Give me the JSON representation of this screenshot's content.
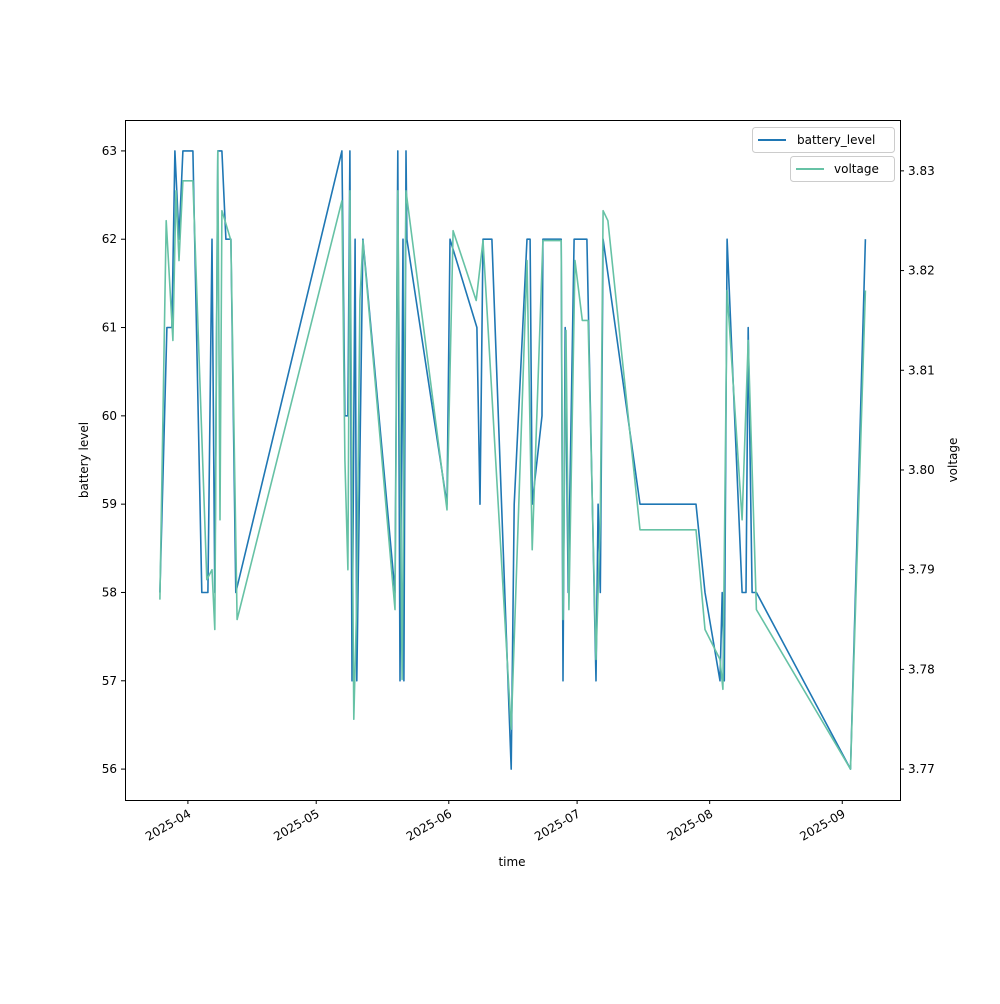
{
  "chart_data": {
    "type": "line",
    "xlabel": "time",
    "ylabel_left": "battery level",
    "ylabel_right": "voltage",
    "xlim": [
      "2025-03-17T07:00",
      "2025-09-14T12:00"
    ],
    "ylim_left": [
      55.65,
      63.35
    ],
    "ylim_right": [
      3.7669,
      3.8351
    ],
    "x_ticks": [
      "2025-04",
      "2025-05",
      "2025-06",
      "2025-07",
      "2025-08",
      "2025-09"
    ],
    "y_ticks_left": [
      56,
      57,
      58,
      59,
      60,
      61,
      62,
      63
    ],
    "y_ticks_right": [
      "3.77",
      "3.78",
      "3.79",
      "3.80",
      "3.81",
      "3.82",
      "3.83"
    ],
    "legend": [
      {
        "label": "battery_level",
        "color": "#1f77b4",
        "placement": "top-right"
      },
      {
        "label": "voltage",
        "color": "#66c2a5",
        "placement": "top-right"
      }
    ],
    "series": [
      {
        "name": "battery_level",
        "axis": "left",
        "color": "#1f77b4",
        "points": [
          [
            "2025-03-25T11:00",
            58
          ],
          [
            "2025-03-27T02:00",
            61
          ],
          [
            "2025-03-28T06:00",
            61
          ],
          [
            "2025-03-28T23:00",
            63
          ],
          [
            "2025-03-29T22:00",
            62
          ],
          [
            "2025-03-30T20:00",
            63
          ],
          [
            "2025-04-02T04:00",
            63
          ],
          [
            "2025-04-04T06:00",
            58
          ],
          [
            "2025-04-05T16:00",
            58
          ],
          [
            "2025-04-06T15:00",
            62
          ],
          [
            "2025-04-07T07:00",
            58
          ],
          [
            "2025-04-08T00:00",
            63
          ],
          [
            "2025-04-08T23:00",
            63
          ],
          [
            "2025-04-09T21:00",
            62
          ],
          [
            "2025-04-11T01:00",
            62
          ],
          [
            "2025-04-12T05:00",
            58
          ],
          [
            "2025-05-07T00:00",
            63
          ],
          [
            "2025-05-07T17:00",
            60
          ],
          [
            "2025-05-08T10:00",
            60
          ],
          [
            "2025-05-08T21:00",
            63
          ],
          [
            "2025-05-09T09:00",
            57
          ],
          [
            "2025-05-10T02:00",
            62
          ],
          [
            "2025-05-10T12:00",
            57
          ],
          [
            "2025-05-11T22:00",
            62
          ],
          [
            "2025-05-19T10:00",
            58
          ],
          [
            "2025-05-20T02:00",
            63
          ],
          [
            "2025-05-20T14:00",
            57
          ],
          [
            "2025-05-21T07:00",
            62
          ],
          [
            "2025-05-21T12:00",
            57
          ],
          [
            "2025-05-22T00:00",
            63
          ],
          [
            "2025-05-22T05:00",
            62
          ],
          [
            "2025-05-31T14:00",
            59
          ],
          [
            "2025-06-01T07:00",
            62
          ],
          [
            "2025-06-07T14:00",
            61
          ],
          [
            "2025-06-08T07:00",
            59
          ],
          [
            "2025-06-09T00:00",
            62
          ],
          [
            "2025-06-11T02:00",
            62
          ],
          [
            "2025-06-15T14:00",
            56
          ],
          [
            "2025-06-16T07:00",
            59
          ],
          [
            "2025-06-19T07:00",
            62
          ],
          [
            "2025-06-20T00:00",
            62
          ],
          [
            "2025-06-20T12:00",
            59
          ],
          [
            "2025-06-22T19:00",
            60
          ],
          [
            "2025-06-23T00:00",
            62
          ],
          [
            "2025-06-27T07:00",
            62
          ],
          [
            "2025-06-27T17:00",
            57
          ],
          [
            "2025-06-28T05:00",
            61
          ],
          [
            "2025-06-28T22:00",
            58
          ],
          [
            "2025-06-30T07:00",
            62
          ],
          [
            "2025-07-02T05:00",
            62
          ],
          [
            "2025-07-03T07:00",
            62
          ],
          [
            "2025-07-05T10:00",
            57
          ],
          [
            "2025-07-05T22:00",
            59
          ],
          [
            "2025-07-06T10:00",
            58
          ],
          [
            "2025-07-07T02:00",
            62
          ],
          [
            "2025-07-15T17:00",
            59
          ],
          [
            "2025-07-28T19:00",
            59
          ],
          [
            "2025-07-30T22:00",
            58
          ],
          [
            "2025-08-03T10:00",
            57
          ],
          [
            "2025-08-03T22:00",
            58
          ],
          [
            "2025-08-04T10:00",
            57
          ],
          [
            "2025-08-05T02:00",
            62
          ],
          [
            "2025-08-08T14:00",
            58
          ],
          [
            "2025-08-09T12:00",
            58
          ],
          [
            "2025-08-10T00:00",
            61
          ],
          [
            "2025-08-10T22:00",
            58
          ],
          [
            "2025-08-11T22:00",
            58
          ],
          [
            "2025-09-02T22:00",
            56
          ],
          [
            "2025-09-06T10:00",
            62
          ]
        ]
      },
      {
        "name": "voltage",
        "axis": "right",
        "color": "#66c2a5",
        "points": [
          [
            "2025-03-25T11:00",
            3.787
          ],
          [
            "2025-03-26T22:00",
            3.825
          ],
          [
            "2025-03-28T12:00",
            3.813
          ],
          [
            "2025-03-29T05:00",
            3.828
          ],
          [
            "2025-03-29T22:00",
            3.821
          ],
          [
            "2025-03-30T20:00",
            3.829
          ],
          [
            "2025-04-02T04:00",
            3.829
          ],
          [
            "2025-04-05T10:00",
            3.789
          ],
          [
            "2025-04-06T15:00",
            3.79
          ],
          [
            "2025-04-07T07:00",
            3.784
          ],
          [
            "2025-04-08T00:00",
            3.832
          ],
          [
            "2025-04-08T12:00",
            3.795
          ],
          [
            "2025-04-08T23:00",
            3.826
          ],
          [
            "2025-04-09T16:00",
            3.825
          ],
          [
            "2025-04-11T01:00",
            3.823
          ],
          [
            "2025-04-12T12:00",
            3.785
          ],
          [
            "2025-05-07T00:00",
            3.827
          ],
          [
            "2025-05-07T17:00",
            3.801
          ],
          [
            "2025-05-08T10:00",
            3.79
          ],
          [
            "2025-05-08T21:00",
            3.828
          ],
          [
            "2025-05-09T19:00",
            3.775
          ],
          [
            "2025-05-10T12:00",
            3.787
          ],
          [
            "2025-05-11T05:00",
            3.817
          ],
          [
            "2025-05-11T22:00",
            3.823
          ],
          [
            "2025-05-19T10:00",
            3.786
          ],
          [
            "2025-05-20T02:00",
            3.828
          ],
          [
            "2025-05-21T02:00",
            3.779
          ],
          [
            "2025-05-22T00:00",
            3.828
          ],
          [
            "2025-05-31T14:00",
            3.796
          ],
          [
            "2025-06-02T00:00",
            3.824
          ],
          [
            "2025-06-07T10:00",
            3.817
          ],
          [
            "2025-06-09T00:00",
            3.823
          ],
          [
            "2025-06-15T14:00",
            3.774
          ],
          [
            "2025-06-19T07:00",
            3.821
          ],
          [
            "2025-06-20T12:00",
            3.792
          ],
          [
            "2025-06-23T00:00",
            3.823
          ],
          [
            "2025-06-27T07:00",
            3.823
          ],
          [
            "2025-06-27T17:00",
            3.785
          ],
          [
            "2025-06-28T10:00",
            3.814
          ],
          [
            "2025-06-29T02:00",
            3.786
          ],
          [
            "2025-06-30T12:00",
            3.821
          ],
          [
            "2025-07-02T05:00",
            3.815
          ],
          [
            "2025-07-03T14:00",
            3.815
          ],
          [
            "2025-07-05T10:00",
            3.781
          ],
          [
            "2025-07-06T10:00",
            3.795
          ],
          [
            "2025-07-07T02:00",
            3.826
          ],
          [
            "2025-07-08T05:00",
            3.825
          ],
          [
            "2025-07-15T17:00",
            3.794
          ],
          [
            "2025-07-28T19:00",
            3.794
          ],
          [
            "2025-07-30T22:00",
            3.784
          ],
          [
            "2025-08-03T10:00",
            3.781
          ],
          [
            "2025-08-04T02:00",
            3.778
          ],
          [
            "2025-08-05T02:00",
            3.818
          ],
          [
            "2025-08-08T14:00",
            3.795
          ],
          [
            "2025-08-10T00:00",
            3.813
          ],
          [
            "2025-08-11T22:00",
            3.786
          ],
          [
            "2025-09-02T22:00",
            3.77
          ],
          [
            "2025-09-06T10:00",
            3.818
          ]
        ]
      }
    ]
  }
}
